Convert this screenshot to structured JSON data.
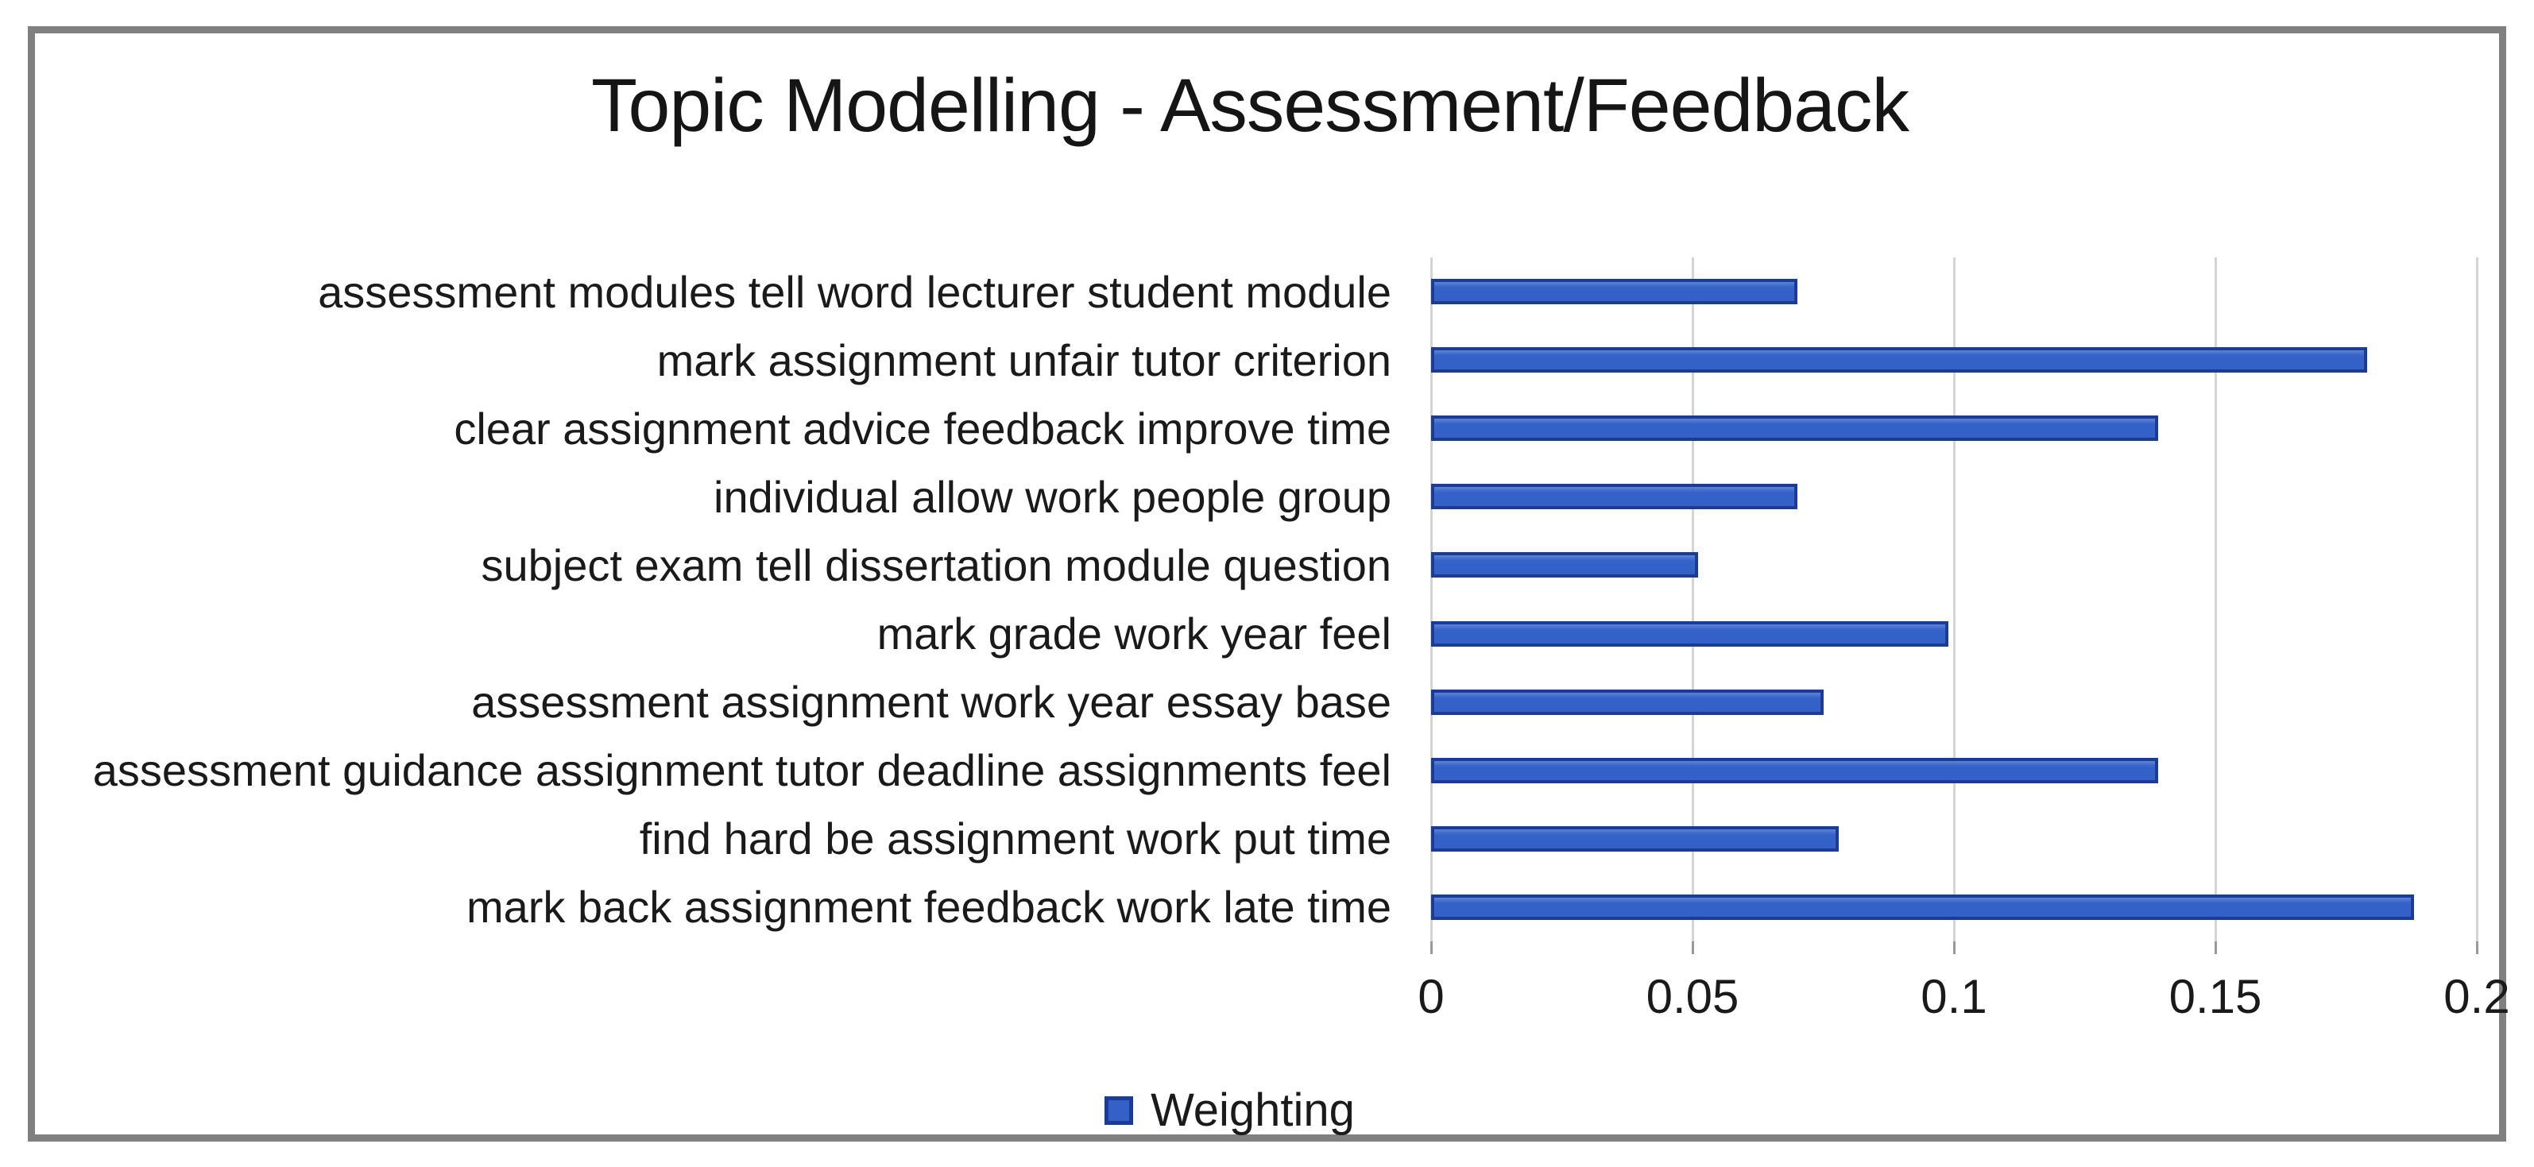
{
  "chart_data": {
    "type": "bar",
    "orientation": "horizontal",
    "title": "Topic Modelling - Assessment/Feedback",
    "categories": [
      "assessment modules tell word lecturer student module",
      "mark assignment unfair tutor criterion",
      "clear assignment advice feedback improve time",
      "individual allow work people group",
      "subject exam tell dissertation module question",
      "mark grade work year feel",
      "assessment assignment work year essay base",
      "assessment guidance assignment tutor deadline assignments feel",
      "find hard be assignment work put time",
      "mark back assignment feedback work late time"
    ],
    "series": [
      {
        "name": "Weighting",
        "values": [
          0.07,
          0.179,
          0.139,
          0.07,
          0.051,
          0.099,
          0.075,
          0.139,
          0.078,
          0.188
        ]
      }
    ],
    "xlim": [
      0,
      0.2
    ],
    "x_ticks": [
      {
        "label": "0",
        "value": 0
      },
      {
        "label": "0.05",
        "value": 0.05
      },
      {
        "label": "0.1",
        "value": 0.1
      },
      {
        "label": "0.15",
        "value": 0.15
      },
      {
        "label": "0.2",
        "value": 0.2
      }
    ],
    "grid": "vertical-gridlines-on",
    "legend_position": "bottom",
    "legend_label": "Weighting"
  },
  "colors": {
    "bar_fill": "#3361c8",
    "bar_border": "#1a3c96",
    "gridline": "#d4d4d4",
    "tick_stub": "#999999",
    "frame_border": "#808080",
    "text": "#1a1a1a",
    "background": "#ffffff"
  }
}
